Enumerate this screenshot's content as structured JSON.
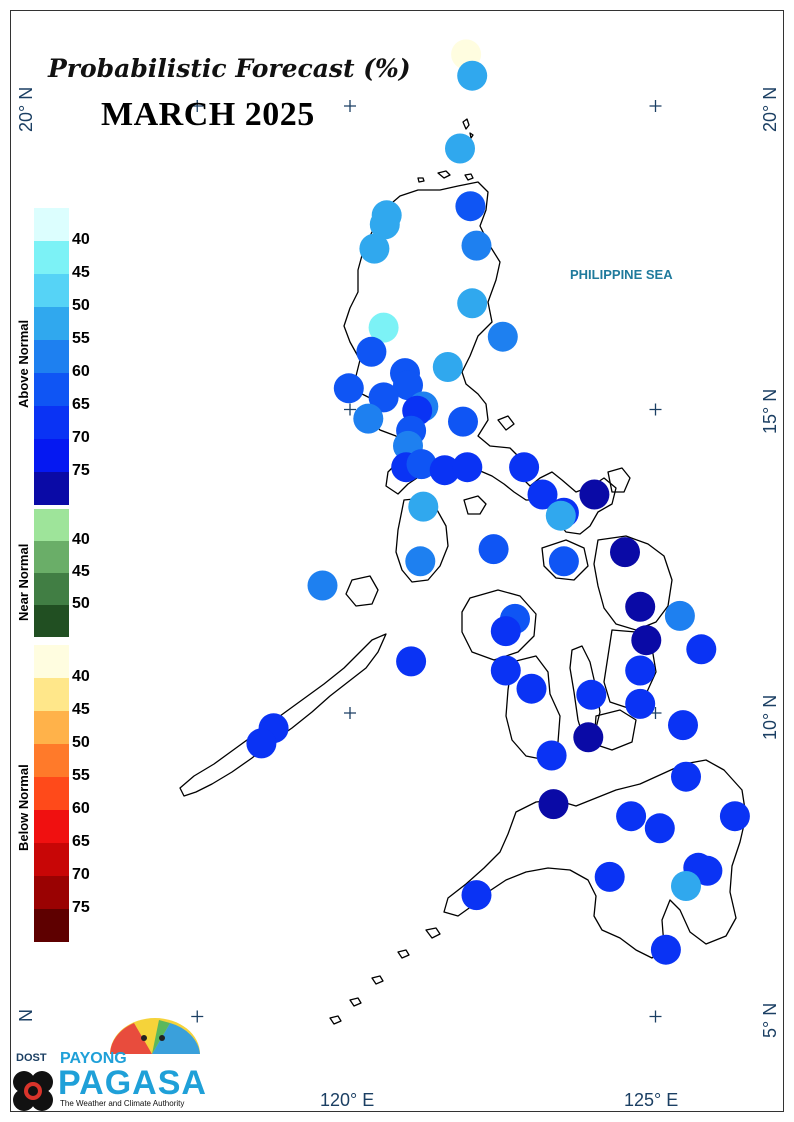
{
  "title": "Probabilistic Forecast (%)",
  "subtitle": "MARCH 2025",
  "sea_label": "PHILIPPINE SEA",
  "axes": {
    "lat_labels": [
      "20° N",
      "15° N",
      "10° N",
      "5° N"
    ],
    "lon_labels": [
      "120° E",
      "125° E"
    ],
    "left_edge_label": "N"
  },
  "legend": {
    "above": {
      "label": "Above Normal",
      "ticks": [
        "40",
        "45",
        "50",
        "55",
        "60",
        "65",
        "70",
        "75"
      ],
      "colors": [
        "#dcfefe",
        "#7cf2f6",
        "#56d3f6",
        "#30a8ee",
        "#1e80f0",
        "#0f55f4",
        "#0a33f4",
        "#0518f2",
        "#0a0aa6"
      ]
    },
    "near": {
      "label": "Near Normal",
      "ticks": [
        "40",
        "45",
        "50"
      ],
      "colors": [
        "#9ee49a",
        "#6aae68",
        "#417e44",
        "#214f22"
      ]
    },
    "below": {
      "label": "Below Normal",
      "ticks": [
        "40",
        "45",
        "50",
        "55",
        "60",
        "65",
        "70",
        "75"
      ],
      "colors": [
        "#fffde0",
        "#ffe78a",
        "#ffb24a",
        "#ff7a2a",
        "#ff4a1a",
        "#f01010",
        "#c80606",
        "#9a0202",
        "#5e0000"
      ]
    }
  },
  "logo": {
    "agency": "DOST",
    "brand_top": "PAYONG",
    "brand_main": "PAGASA",
    "tagline": "The Weather and Climate Authority"
  },
  "stations": [
    {
      "lon": 121.9,
      "lat": 20.85,
      "category": "below",
      "probability": 40,
      "color": "#fffde0"
    },
    {
      "lon": 122.0,
      "lat": 20.5,
      "category": "above",
      "probability": 55,
      "color": "#30a8ee"
    },
    {
      "lon": 121.8,
      "lat": 19.3,
      "category": "above",
      "probability": 55,
      "color": "#30a8ee"
    },
    {
      "lon": 120.6,
      "lat": 18.2,
      "category": "above",
      "probability": 55,
      "color": "#30a8ee"
    },
    {
      "lon": 120.57,
      "lat": 18.05,
      "category": "above",
      "probability": 55,
      "color": "#30a8ee"
    },
    {
      "lon": 121.97,
      "lat": 18.35,
      "category": "above",
      "probability": 65,
      "color": "#0f55f4"
    },
    {
      "lon": 120.4,
      "lat": 17.65,
      "category": "above",
      "probability": 55,
      "color": "#30a8ee"
    },
    {
      "lon": 122.07,
      "lat": 17.7,
      "category": "above",
      "probability": 60,
      "color": "#1e80f0"
    },
    {
      "lon": 122.0,
      "lat": 16.75,
      "category": "above",
      "probability": 55,
      "color": "#30a8ee"
    },
    {
      "lon": 122.5,
      "lat": 16.2,
      "category": "above",
      "probability": 60,
      "color": "#1e80f0"
    },
    {
      "lon": 120.55,
      "lat": 16.35,
      "category": "above",
      "probability": 45,
      "color": "#7cf2f6"
    },
    {
      "lon": 120.35,
      "lat": 15.95,
      "category": "above",
      "probability": 65,
      "color": "#0f55f4"
    },
    {
      "lon": 120.9,
      "lat": 15.6,
      "category": "above",
      "probability": 65,
      "color": "#0f55f4"
    },
    {
      "lon": 121.6,
      "lat": 15.7,
      "category": "above",
      "probability": 55,
      "color": "#30a8ee"
    },
    {
      "lon": 120.95,
      "lat": 15.4,
      "category": "above",
      "probability": 65,
      "color": "#0f55f4"
    },
    {
      "lon": 119.98,
      "lat": 15.35,
      "category": "above",
      "probability": 65,
      "color": "#0f55f4"
    },
    {
      "lon": 120.55,
      "lat": 15.2,
      "category": "above",
      "probability": 65,
      "color": "#0f55f4"
    },
    {
      "lon": 121.2,
      "lat": 15.05,
      "category": "above",
      "probability": 60,
      "color": "#1e80f0"
    },
    {
      "lon": 121.1,
      "lat": 14.98,
      "category": "above",
      "probability": 70,
      "color": "#0a33f4"
    },
    {
      "lon": 120.3,
      "lat": 14.85,
      "category": "above",
      "probability": 60,
      "color": "#1e80f0"
    },
    {
      "lon": 121.85,
      "lat": 14.8,
      "category": "above",
      "probability": 65,
      "color": "#0f55f4"
    },
    {
      "lon": 121.0,
      "lat": 14.65,
      "category": "above",
      "probability": 65,
      "color": "#0f55f4"
    },
    {
      "lon": 120.95,
      "lat": 14.4,
      "category": "above",
      "probability": 60,
      "color": "#1e80f0"
    },
    {
      "lon": 120.92,
      "lat": 14.05,
      "category": "above",
      "probability": 70,
      "color": "#0a33f4"
    },
    {
      "lon": 121.17,
      "lat": 14.1,
      "category": "above",
      "probability": 65,
      "color": "#0f55f4"
    },
    {
      "lon": 121.55,
      "lat": 14.0,
      "category": "above",
      "probability": 70,
      "color": "#0a33f4"
    },
    {
      "lon": 121.92,
      "lat": 14.05,
      "category": "above",
      "probability": 70,
      "color": "#0a33f4"
    },
    {
      "lon": 122.85,
      "lat": 14.05,
      "category": "above",
      "probability": 70,
      "color": "#0a33f4"
    },
    {
      "lon": 123.15,
      "lat": 13.6,
      "category": "above",
      "probability": 70,
      "color": "#0a33f4"
    },
    {
      "lon": 124.0,
      "lat": 13.6,
      "category": "above",
      "probability": 75,
      "color": "#0a0aa6"
    },
    {
      "lon": 123.5,
      "lat": 13.3,
      "category": "above",
      "probability": 70,
      "color": "#0a33f4"
    },
    {
      "lon": 123.45,
      "lat": 13.25,
      "category": "above",
      "probability": 55,
      "color": "#30a8ee"
    },
    {
      "lon": 121.2,
      "lat": 13.4,
      "category": "above",
      "probability": 55,
      "color": "#30a8ee"
    },
    {
      "lon": 122.35,
      "lat": 12.7,
      "category": "above",
      "probability": 65,
      "color": "#0f55f4"
    },
    {
      "lon": 121.15,
      "lat": 12.5,
      "category": "above",
      "probability": 60,
      "color": "#1e80f0"
    },
    {
      "lon": 123.5,
      "lat": 12.5,
      "category": "above",
      "probability": 65,
      "color": "#0f55f4"
    },
    {
      "lon": 124.5,
      "lat": 12.65,
      "category": "above",
      "probability": 75,
      "color": "#0a0aa6"
    },
    {
      "lon": 119.55,
      "lat": 12.1,
      "category": "above",
      "probability": 60,
      "color": "#1e80f0"
    },
    {
      "lon": 124.75,
      "lat": 11.75,
      "category": "above",
      "probability": 75,
      "color": "#0a0aa6"
    },
    {
      "lon": 125.4,
      "lat": 11.6,
      "category": "above",
      "probability": 60,
      "color": "#1e80f0"
    },
    {
      "lon": 122.7,
      "lat": 11.55,
      "category": "above",
      "probability": 65,
      "color": "#0f55f4"
    },
    {
      "lon": 122.55,
      "lat": 11.35,
      "category": "above",
      "probability": 70,
      "color": "#0a33f4"
    },
    {
      "lon": 124.85,
      "lat": 11.2,
      "category": "above",
      "probability": 75,
      "color": "#0a0aa6"
    },
    {
      "lon": 125.75,
      "lat": 11.05,
      "category": "above",
      "probability": 70,
      "color": "#0a33f4"
    },
    {
      "lon": 121.0,
      "lat": 10.85,
      "category": "above",
      "probability": 70,
      "color": "#0a33f4"
    },
    {
      "lon": 122.55,
      "lat": 10.7,
      "category": "above",
      "probability": 70,
      "color": "#0a33f4"
    },
    {
      "lon": 124.75,
      "lat": 10.7,
      "category": "above",
      "probability": 70,
      "color": "#0a33f4"
    },
    {
      "lon": 122.97,
      "lat": 10.4,
      "category": "above",
      "probability": 70,
      "color": "#0a33f4"
    },
    {
      "lon": 123.95,
      "lat": 10.3,
      "category": "above",
      "probability": 70,
      "color": "#0a33f4"
    },
    {
      "lon": 124.75,
      "lat": 10.15,
      "category": "above",
      "probability": 70,
      "color": "#0a33f4"
    },
    {
      "lon": 125.45,
      "lat": 9.8,
      "category": "above",
      "probability": 70,
      "color": "#0a33f4"
    },
    {
      "lon": 118.75,
      "lat": 9.75,
      "category": "above",
      "probability": 70,
      "color": "#0a33f4"
    },
    {
      "lon": 118.55,
      "lat": 9.5,
      "category": "above",
      "probability": 70,
      "color": "#0a33f4"
    },
    {
      "lon": 123.9,
      "lat": 9.6,
      "category": "above",
      "probability": 75,
      "color": "#0a0aa6"
    },
    {
      "lon": 123.3,
      "lat": 9.3,
      "category": "above",
      "probability": 70,
      "color": "#0a33f4"
    },
    {
      "lon": 125.5,
      "lat": 8.95,
      "category": "above",
      "probability": 70,
      "color": "#0a33f4"
    },
    {
      "lon": 123.33,
      "lat": 8.5,
      "category": "above",
      "probability": 75,
      "color": "#0a0aa6"
    },
    {
      "lon": 124.6,
      "lat": 8.3,
      "category": "above",
      "probability": 70,
      "color": "#0a33f4"
    },
    {
      "lon": 126.3,
      "lat": 8.3,
      "category": "above",
      "probability": 70,
      "color": "#0a33f4"
    },
    {
      "lon": 125.07,
      "lat": 8.1,
      "category": "above",
      "probability": 70,
      "color": "#0a33f4"
    },
    {
      "lon": 125.7,
      "lat": 7.45,
      "category": "above",
      "probability": 70,
      "color": "#0a33f4"
    },
    {
      "lon": 125.85,
      "lat": 7.4,
      "category": "above",
      "probability": 70,
      "color": "#0a33f4"
    },
    {
      "lon": 124.25,
      "lat": 7.3,
      "category": "above",
      "probability": 70,
      "color": "#0a33f4"
    },
    {
      "lon": 125.5,
      "lat": 7.15,
      "category": "above",
      "probability": 55,
      "color": "#30a8ee"
    },
    {
      "lon": 122.07,
      "lat": 7.0,
      "category": "above",
      "probability": 70,
      "color": "#0a33f4"
    },
    {
      "lon": 125.17,
      "lat": 6.1,
      "category": "above",
      "probability": 70,
      "color": "#0a33f4"
    }
  ]
}
